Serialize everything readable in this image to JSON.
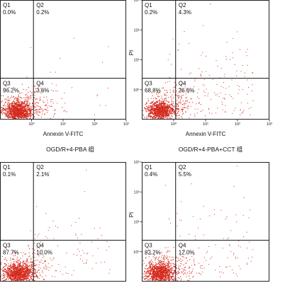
{
  "group_labels": [
    "OGD/R+4-PBA 组",
    "OGD/R+4-PBA+CCT 组"
  ],
  "point_color": "#d42a1e",
  "chart_data": [
    {
      "type": "scatter",
      "panel": "top-left",
      "xlabel": "Annexin V-FITC",
      "ylabel": "",
      "x_scale": "log",
      "y_scale": "log",
      "xlim": [
        0.1,
        1000
      ],
      "ylim": [
        0.1,
        1000
      ],
      "x_ticks": [
        "10⁰",
        "10¹",
        "10²",
        "10³"
      ],
      "y_ticks": [],
      "quadrant_gate": [
        1.15,
        2.4
      ],
      "quadrants": [
        {
          "name": "Q1",
          "percent": "0.0%"
        },
        {
          "name": "Q2",
          "percent": "0.2%"
        },
        {
          "name": "Q3",
          "percent": "96.2%"
        },
        {
          "name": "Q4",
          "percent": "3.6%"
        }
      ]
    },
    {
      "type": "scatter",
      "panel": "top-right",
      "xlabel": "Annexin V-FITC",
      "ylabel": "PI",
      "x_scale": "log",
      "y_scale": "log",
      "xlim": [
        0.1,
        1000
      ],
      "ylim": [
        0.1,
        1000
      ],
      "x_ticks": [
        "10⁰",
        "10¹",
        "10²",
        "10³"
      ],
      "y_ticks": [
        "10⁰",
        "10¹",
        "10²",
        "10³"
      ],
      "quadrant_gate": [
        1.15,
        2.4
      ],
      "quadrants": [
        {
          "name": "Q1",
          "percent": "0.2%"
        },
        {
          "name": "Q2",
          "percent": "4.3%"
        },
        {
          "name": "Q3",
          "percent": "68.8%"
        },
        {
          "name": "Q4",
          "percent": "26.6%"
        }
      ]
    },
    {
      "type": "scatter",
      "panel": "bottom-left",
      "xlabel": "",
      "ylabel": "",
      "x_scale": "log",
      "y_scale": "log",
      "xlim": [
        0.1,
        1000
      ],
      "ylim": [
        0.1,
        1000
      ],
      "x_ticks": [],
      "y_ticks": [],
      "quadrant_gate": [
        1.15,
        2.4
      ],
      "quadrants": [
        {
          "name": "Q1",
          "percent": "0.1%"
        },
        {
          "name": "Q2",
          "percent": "2.1%"
        },
        {
          "name": "Q3",
          "percent": "87.7%"
        },
        {
          "name": "Q4",
          "percent": "10.0%"
        }
      ]
    },
    {
      "type": "scatter",
      "panel": "bottom-right",
      "xlabel": "",
      "ylabel": "PI",
      "x_scale": "log",
      "y_scale": "log",
      "xlim": [
        0.1,
        1000
      ],
      "ylim": [
        0.1,
        1000
      ],
      "x_ticks": [],
      "y_ticks": [
        "10⁰",
        "10¹",
        "10²",
        "10³"
      ],
      "quadrant_gate": [
        1.15,
        2.4
      ],
      "quadrants": [
        {
          "name": "Q1",
          "percent": "0.4%"
        },
        {
          "name": "Q2",
          "percent": "5.5%"
        },
        {
          "name": "Q3",
          "percent": "82.2%"
        },
        {
          "name": "Q4",
          "percent": "12.0%"
        }
      ]
    }
  ]
}
